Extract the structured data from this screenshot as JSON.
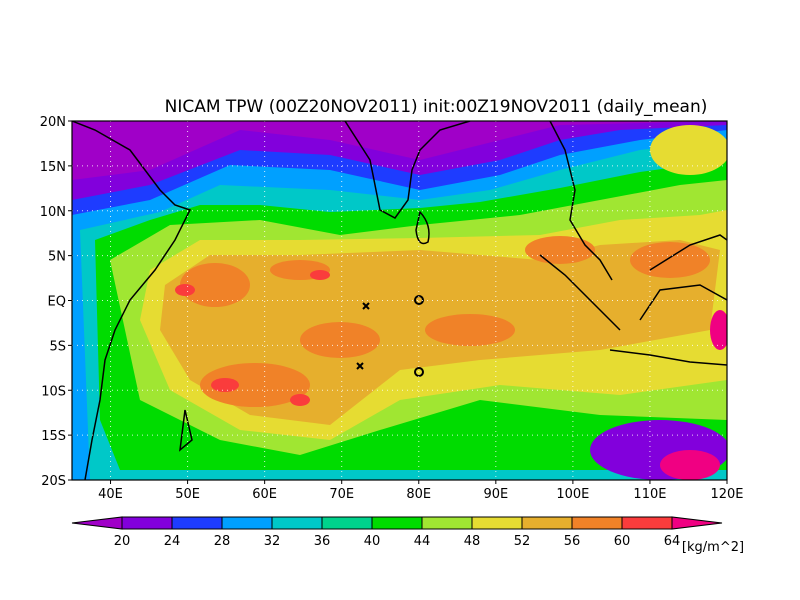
{
  "title": "NICAM TPW (00Z20NOV2011) init:00Z19NOV2011 (daily_mean)",
  "map": {
    "lon_range": [
      35,
      120
    ],
    "lat_range": [
      -20,
      20
    ],
    "grid": true,
    "lat_ticks": [
      {
        "value": 20,
        "label": "20N"
      },
      {
        "value": 15,
        "label": "15N"
      },
      {
        "value": 10,
        "label": "10N"
      },
      {
        "value": 5,
        "label": "5N"
      },
      {
        "value": 0,
        "label": "EQ"
      },
      {
        "value": -5,
        "label": "5S"
      },
      {
        "value": -10,
        "label": "10S"
      },
      {
        "value": -15,
        "label": "15S"
      },
      {
        "value": -20,
        "label": "20S"
      }
    ],
    "lon_ticks": [
      {
        "value": 40,
        "label": "40E"
      },
      {
        "value": 50,
        "label": "50E"
      },
      {
        "value": 60,
        "label": "60E"
      },
      {
        "value": 70,
        "label": "70E"
      },
      {
        "value": 80,
        "label": "80E"
      },
      {
        "value": 90,
        "label": "90E"
      },
      {
        "value": 100,
        "label": "100E"
      },
      {
        "value": 110,
        "label": "110E"
      },
      {
        "value": 120,
        "label": "120E"
      }
    ]
  },
  "colorbar": {
    "ticks": [
      20,
      24,
      28,
      32,
      36,
      40,
      44,
      48,
      52,
      56,
      60,
      64
    ],
    "colors": [
      "#a000c8",
      "#8200dc",
      "#1e3cff",
      "#00a0ff",
      "#00c8c8",
      "#00d28c",
      "#00dc00",
      "#a0e632",
      "#e6dc32",
      "#e6af2d",
      "#f08228",
      "#fa3c3c",
      "#f00082"
    ],
    "unit": "[kg/m^2]"
  }
}
